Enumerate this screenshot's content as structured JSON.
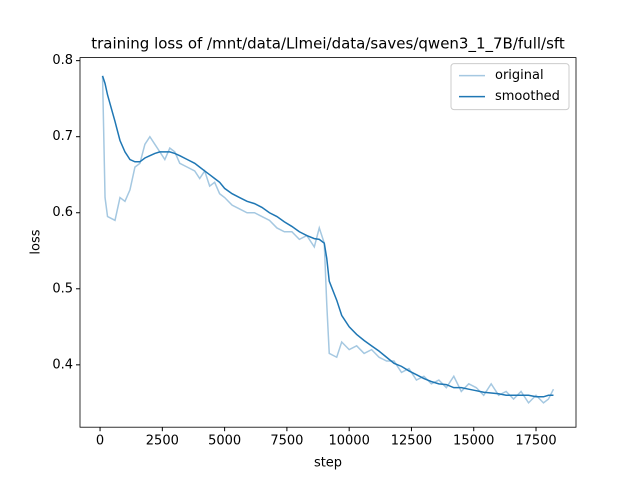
{
  "chart_data": {
    "type": "line",
    "title": "training loss of /mnt/data/Llmei/data/saves/qwen3_1_7B/full/sft",
    "x_label": "step",
    "y_label": "loss",
    "x": [
      100,
      200,
      300,
      600,
      800,
      1000,
      1200,
      1400,
      1600,
      1800,
      2000,
      2200,
      2400,
      2600,
      2800,
      3000,
      3200,
      3500,
      3800,
      4000,
      4200,
      4400,
      4600,
      4800,
      5000,
      5300,
      5600,
      5900,
      6200,
      6500,
      6800,
      7100,
      7400,
      7700,
      8000,
      8300,
      8600,
      8800,
      9000,
      9100,
      9200,
      9500,
      9700,
      10000,
      10300,
      10600,
      10900,
      11200,
      11500,
      11800,
      12100,
      12400,
      12700,
      13000,
      13300,
      13600,
      13900,
      14200,
      14500,
      14800,
      15100,
      15400,
      15700,
      16000,
      16300,
      16600,
      16900,
      17200,
      17500,
      17800,
      18000,
      18200
    ],
    "series": [
      {
        "name": "original",
        "color": "#a5c8e1",
        "values": [
          0.78,
          0.62,
          0.595,
          0.59,
          0.62,
          0.615,
          0.63,
          0.66,
          0.665,
          0.69,
          0.7,
          0.69,
          0.68,
          0.67,
          0.685,
          0.68,
          0.665,
          0.66,
          0.655,
          0.645,
          0.655,
          0.635,
          0.64,
          0.625,
          0.62,
          0.61,
          0.605,
          0.6,
          0.6,
          0.595,
          0.59,
          0.58,
          0.575,
          0.575,
          0.565,
          0.57,
          0.555,
          0.58,
          0.56,
          0.48,
          0.415,
          0.41,
          0.43,
          0.42,
          0.425,
          0.415,
          0.42,
          0.41,
          0.405,
          0.405,
          0.39,
          0.395,
          0.38,
          0.385,
          0.375,
          0.38,
          0.37,
          0.385,
          0.365,
          0.375,
          0.37,
          0.36,
          0.375,
          0.36,
          0.365,
          0.355,
          0.365,
          0.35,
          0.36,
          0.35,
          0.355,
          0.368
        ]
      },
      {
        "name": "smoothed",
        "color": "#1f77b4",
        "values": [
          0.78,
          0.77,
          0.755,
          0.72,
          0.695,
          0.68,
          0.67,
          0.667,
          0.667,
          0.672,
          0.675,
          0.678,
          0.68,
          0.68,
          0.68,
          0.678,
          0.675,
          0.67,
          0.665,
          0.66,
          0.655,
          0.65,
          0.645,
          0.64,
          0.632,
          0.625,
          0.62,
          0.615,
          0.612,
          0.607,
          0.6,
          0.595,
          0.588,
          0.582,
          0.575,
          0.57,
          0.566,
          0.565,
          0.56,
          0.54,
          0.51,
          0.485,
          0.465,
          0.45,
          0.44,
          0.432,
          0.425,
          0.418,
          0.41,
          0.402,
          0.398,
          0.392,
          0.387,
          0.382,
          0.378,
          0.375,
          0.374,
          0.37,
          0.37,
          0.368,
          0.366,
          0.364,
          0.363,
          0.362,
          0.36,
          0.36,
          0.36,
          0.36,
          0.358,
          0.358,
          0.36,
          0.36
        ]
      }
    ],
    "xlim": [
      -805,
      19105
    ],
    "ylim": [
      0.318,
      0.804
    ],
    "xticks": [
      0,
      2500,
      5000,
      7500,
      10000,
      12500,
      15000,
      17500
    ],
    "yticks": [
      0.4,
      0.5,
      0.6,
      0.7,
      0.8
    ],
    "legend": "upper right"
  }
}
